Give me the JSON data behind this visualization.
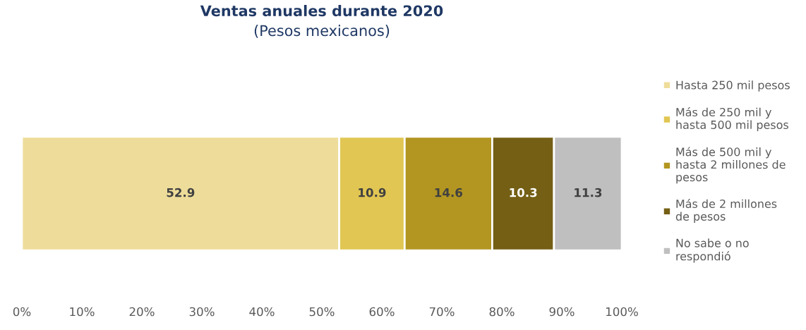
{
  "chart_data": {
    "type": "bar",
    "orientation": "horizontal",
    "stacked": true,
    "title": "Ventas anuales durante 2020",
    "subtitle": "(Pesos mexicanos)",
    "categories": [
      null
    ],
    "series": [
      {
        "name": "Hasta 250 mil pesos",
        "color": "#eedd9a",
        "values": [
          52.9
        ]
      },
      {
        "name": "Más de 250 mil y hasta 500 mil pesos",
        "color": "#e1c653",
        "values": [
          10.9
        ]
      },
      {
        "name": "Más de 500 mil y hasta 2 millones de pesos",
        "color": "#b39621",
        "values": [
          14.6
        ]
      },
      {
        "name": "Más de 2 millones de pesos",
        "color": "#745f15",
        "values": [
          10.3
        ]
      },
      {
        "name": "No sabe o no respondió",
        "color": "#bfbfbf",
        "values": [
          11.3
        ]
      }
    ],
    "xlim": [
      0,
      100
    ],
    "xticks": [
      {
        "value": 0,
        "label": "0%"
      },
      {
        "value": 10,
        "label": "10%"
      },
      {
        "value": 20,
        "label": "20%"
      },
      {
        "value": 30,
        "label": "30%"
      },
      {
        "value": 40,
        "label": "40%"
      },
      {
        "value": 50,
        "label": "50%"
      },
      {
        "value": 60,
        "label": "60%"
      },
      {
        "value": 70,
        "label": "70%"
      },
      {
        "value": 80,
        "label": "80%"
      },
      {
        "value": 90,
        "label": "90%"
      },
      {
        "value": 100,
        "label": "100%"
      }
    ],
    "data_labels": true,
    "legend": "right",
    "grid": false
  }
}
